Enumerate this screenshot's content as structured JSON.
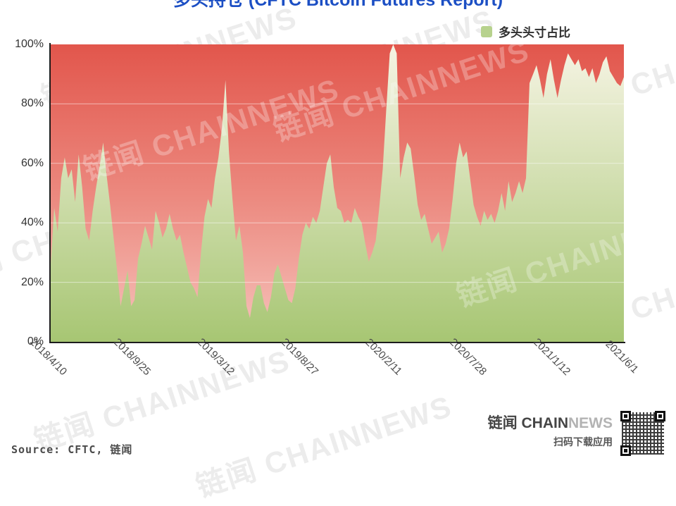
{
  "title": {
    "text": "多头持仓 (CFTC Bitcoin Futures Report)"
  },
  "legend": {
    "label": "多头头寸占比",
    "swatch_color": "#b7d28d"
  },
  "axes": {
    "y_ticks": [
      "100%",
      "80%",
      "60%",
      "40%",
      "20%",
      "0%"
    ],
    "x_ticks": [
      "2018/4/10",
      "2018/9/25",
      "2019/3/12",
      "2019/8/27",
      "2020/2/11",
      "2020/7/28",
      "2021/1/12",
      "2021/6/1"
    ]
  },
  "chart_data": {
    "type": "area",
    "title": "多头持仓 (CFTC Bitcoin Futures Report)",
    "xlabel": "",
    "ylabel": "",
    "ylim": [
      0,
      100
    ],
    "y_tick_step": 20,
    "grid": "horizontal white lines at 20/40/60/80%",
    "legend_position": "top-right",
    "x_tick_labels": [
      "2018/4/10",
      "2018/9/25",
      "2019/3/12",
      "2019/8/27",
      "2020/2/11",
      "2020/7/28",
      "2021/1/12",
      "2021/6/1"
    ],
    "x_tick_indices": [
      0,
      24,
      48,
      72,
      96,
      120,
      144,
      164
    ],
    "x_unit": "weekly observations",
    "series": [
      {
        "name": "多头头寸占比",
        "unit": "%",
        "values": [
          26,
          45,
          37,
          55,
          62,
          55,
          58,
          47,
          63,
          52,
          38,
          34,
          44,
          52,
          59,
          67,
          56,
          46,
          35,
          24,
          12,
          18,
          24,
          12,
          14,
          28,
          33,
          39,
          35,
          31,
          44,
          40,
          35,
          38,
          43,
          38,
          34,
          36,
          30,
          25,
          20,
          18,
          15,
          30,
          42,
          48,
          45,
          55,
          62,
          72,
          88,
          64,
          48,
          34,
          39,
          30,
          12,
          8,
          15,
          19,
          19,
          13,
          10,
          15,
          23,
          26,
          22,
          18,
          14,
          13,
          18,
          28,
          36,
          40,
          38,
          42,
          40,
          44,
          52,
          60,
          63,
          52,
          45,
          44,
          40,
          41,
          40,
          45,
          42,
          40,
          33,
          27,
          30,
          34,
          45,
          58,
          78,
          97,
          100,
          97,
          55,
          62,
          67,
          65,
          56,
          46,
          41,
          43,
          38,
          33,
          35,
          37,
          30,
          33,
          38,
          48,
          60,
          67,
          62,
          64,
          55,
          46,
          42,
          39,
          44,
          41,
          43,
          40,
          44,
          50,
          44,
          54,
          47,
          50,
          54,
          50,
          55,
          87,
          90,
          93,
          88,
          82,
          90,
          95,
          88,
          82,
          88,
          93,
          97,
          95,
          93,
          95,
          91,
          92,
          89,
          92,
          87,
          90,
          94,
          96,
          91,
          89,
          87,
          86,
          89
        ]
      }
    ]
  },
  "footer": {
    "source": "Source: CFTC, 链闻",
    "brand_strong": "链闻 CHAIN",
    "brand_light": "NEWS",
    "qr_caption": "扫码下载应用"
  },
  "watermark": {
    "text": "链闻 CHAINNEWS"
  },
  "colors": {
    "title_blue": "#1c4fc4",
    "red_top": "#e2564c",
    "red_mid": "#ec8a80",
    "red_bottom": "#f6c3bc",
    "green_top": "#f6f4e4",
    "green_bottom": "#a7c673",
    "gridline": "rgba(255,255,255,0.5)",
    "axis": "#1c1c1c"
  }
}
